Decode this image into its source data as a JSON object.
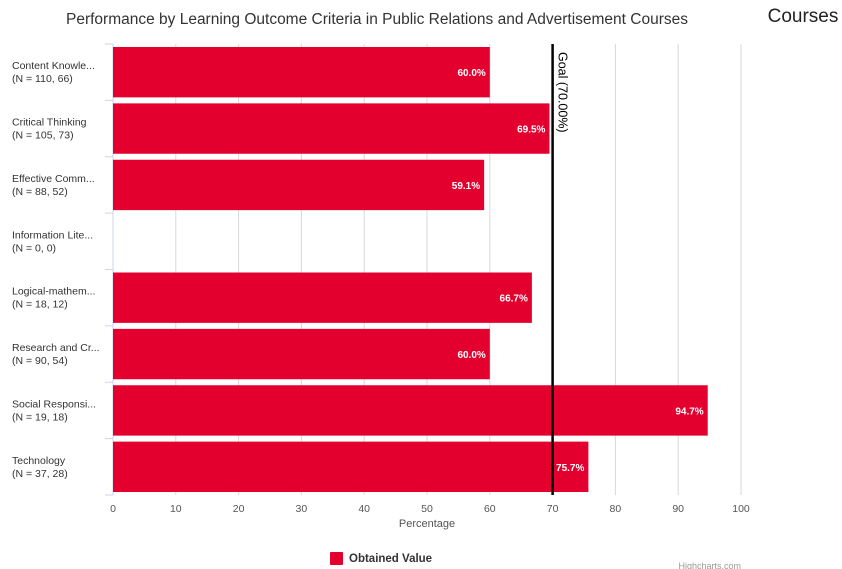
{
  "corner_label": "Courses",
  "credits": "Highcharts.com",
  "colors": {
    "bar": "#e3002f",
    "goal_line": "#000000",
    "grid": "#d8d8d8"
  },
  "chart_data": {
    "type": "bar",
    "orientation": "horizontal",
    "title": "Performance by Learning Outcome Criteria in Public Relations and Advertisement Courses",
    "xlabel": "Percentage",
    "xlim": [
      0,
      100
    ],
    "ticks": [
      "0",
      "10",
      "20",
      "30",
      "40",
      "50",
      "60",
      "70",
      "80",
      "90",
      "100"
    ],
    "grid": true,
    "categories": [
      {
        "name": "Content Knowle...",
        "n": "(N = 110, 66)"
      },
      {
        "name": "Critical Thinking",
        "n": "(N = 105, 73)"
      },
      {
        "name": "Effective Comm...",
        "n": "(N = 88, 52)"
      },
      {
        "name": "Information Lite...",
        "n": "(N = 0, 0)"
      },
      {
        "name": "Logical-mathem...",
        "n": "(N = 18, 12)"
      },
      {
        "name": "Research and Cr...",
        "n": "(N = 90, 54)"
      },
      {
        "name": "Social Responsi...",
        "n": "(N = 19, 18)"
      },
      {
        "name": "Technology",
        "n": "(N = 37, 28)"
      }
    ],
    "series": [
      {
        "name": "Obtained Value",
        "values": [
          60.0,
          69.5,
          59.1,
          null,
          66.7,
          60.0,
          94.7,
          75.7
        ],
        "labels": [
          "60.0%",
          "69.5%",
          "59.1%",
          "",
          "66.7%",
          "60.0%",
          "94.7%",
          "75.7%"
        ]
      }
    ],
    "goal": {
      "value": 70,
      "label": "Goal (70.00%)"
    },
    "legend": {
      "position": "bottom-center",
      "label": "Obtained Value"
    }
  }
}
